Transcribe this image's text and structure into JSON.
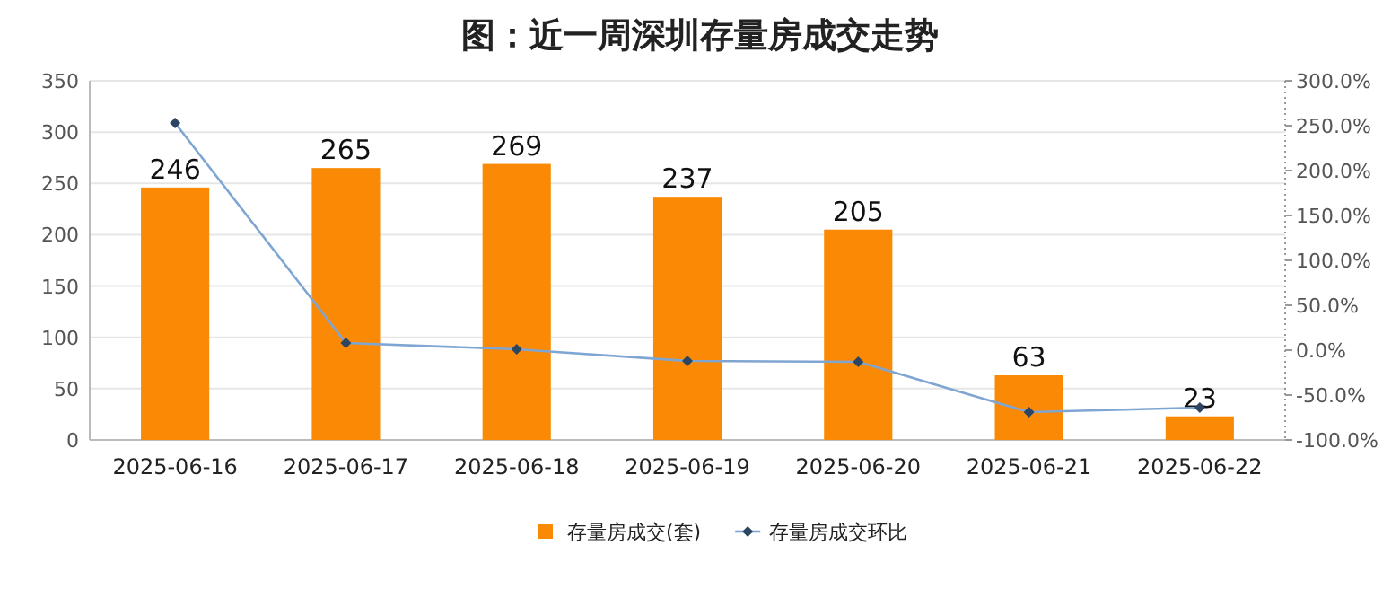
{
  "chart_data": {
    "type": "bar",
    "title": "图：近一周深圳存量房成交走势",
    "categories": [
      "2025-06-16",
      "2025-06-17",
      "2025-06-18",
      "2025-06-19",
      "2025-06-20",
      "2025-06-21",
      "2025-06-22"
    ],
    "series": [
      {
        "name": "存量房成交(套)",
        "color": "#fa8a06",
        "values": [
          246,
          265,
          269,
          237,
          205,
          63,
          23
        ],
        "value_labels": [
          "246",
          "265",
          "269",
          "237",
          "205",
          "63",
          "23"
        ]
      },
      {
        "name": "存量房成交环比",
        "type": "line",
        "axis": "y2",
        "color": "#7fa6d2",
        "marker": "diamond",
        "values": [
          253,
          8,
          1,
          -12,
          -13,
          -69,
          -64
        ]
      }
    ],
    "ylim": [
      0,
      350
    ],
    "yticks": [
      0,
      50,
      100,
      150,
      200,
      250,
      300,
      350
    ],
    "y2lim": [
      -100,
      300
    ],
    "y2ticks": [
      {
        "value": -100,
        "label": "-100.0%"
      },
      {
        "value": -50,
        "label": "-50.0%"
      },
      {
        "value": 0,
        "label": "0.0%"
      },
      {
        "value": 50,
        "label": "50.0%"
      },
      {
        "value": 100,
        "label": "100.0%"
      },
      {
        "value": 150,
        "label": "150.0%"
      },
      {
        "value": 200,
        "label": "200.0%"
      },
      {
        "value": 250,
        "label": "250.0%"
      },
      {
        "value": 300,
        "label": "300.0%"
      }
    ],
    "grid": "y",
    "legend": "bottom"
  }
}
